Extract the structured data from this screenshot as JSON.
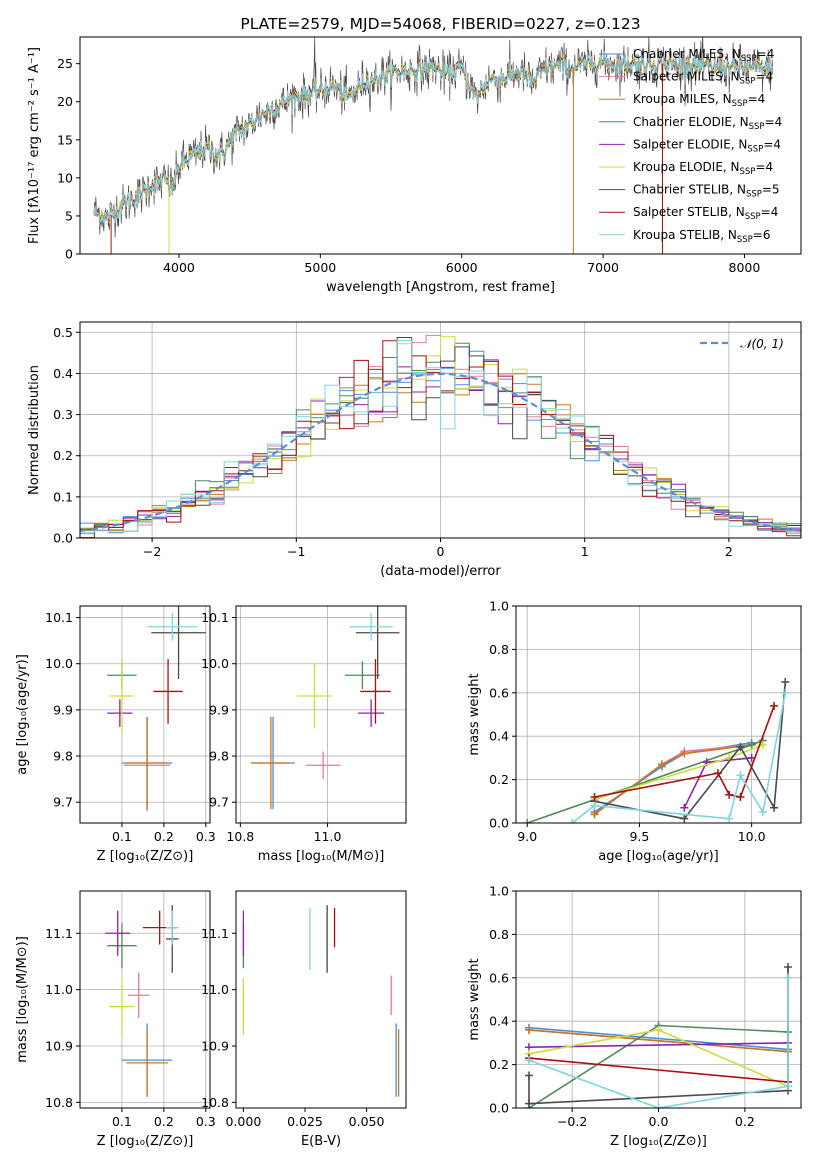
{
  "series_styles": [
    {
      "name": "Chabrier MILES",
      "color": "#4a90d9"
    },
    {
      "name": "Salpeter MILES",
      "color": "#e8799f"
    },
    {
      "name": "Kroupa MILES",
      "color": "#c8781e"
    },
    {
      "name": "Chabrier ELODIE",
      "color": "#4f8a5a"
    },
    {
      "name": "Salpeter ELODIE",
      "color": "#8e24aa"
    },
    {
      "name": "Kroupa ELODIE",
      "color": "#cddc39"
    },
    {
      "name": "Chabrier STELIB",
      "color": "#4a4a4a"
    },
    {
      "name": "Salpeter STELIB",
      "color": "#a81010"
    },
    {
      "name": "Kroupa STELIB",
      "color": "#7fd6dc"
    }
  ],
  "chart_data": [
    {
      "id": "spectrum",
      "type": "line",
      "title": "PLATE=2579, MJD=54068, FIBERID=0227, z=0.123",
      "xlabel": "wavelength [Angstrom, rest frame]",
      "ylabel": "Flux [fλ10⁻¹⁷ erg cm⁻² s⁻¹ A⁻¹]",
      "xlim": [
        3300,
        8400
      ],
      "ylim": [
        0,
        28.5
      ],
      "xticks": [
        "4000",
        "5000",
        "6000",
        "7000",
        "8000"
      ],
      "yticks": [
        "0",
        "5",
        "10",
        "15",
        "20",
        "25"
      ],
      "legend": [
        "Chabrier MILES, N_SSP=4",
        "Salpeter MILES, N_SSP=4",
        "Kroupa MILES, N_SSP=4",
        "Chabrier ELODIE, N_SSP=4",
        "Salpeter ELODIE, N_SSP=4",
        "Kroupa ELODIE, N_SSP=4",
        "Chabrier STELIB, N_SSP=5",
        "Salpeter STELIB, N_SSP=4",
        "Kroupa STELIB, N_SSP=6"
      ],
      "legend_placement": "upper-right",
      "grid": false,
      "continuum": [
        [
          3400,
          5.5
        ],
        [
          3500,
          4.8
        ],
        [
          3600,
          6.5
        ],
        [
          3700,
          7.5
        ],
        [
          3800,
          9
        ],
        [
          3900,
          9.8
        ],
        [
          3950,
          8.5
        ],
        [
          4000,
          11.5
        ],
        [
          4100,
          13
        ],
        [
          4200,
          13.8
        ],
        [
          4300,
          13
        ],
        [
          4400,
          15.8
        ],
        [
          4500,
          17
        ],
        [
          4600,
          18.5
        ],
        [
          4700,
          19.5
        ],
        [
          4800,
          20.5
        ],
        [
          4900,
          21
        ],
        [
          5000,
          21.5
        ],
        [
          5100,
          22
        ],
        [
          5200,
          20.5
        ],
        [
          5300,
          22.5
        ],
        [
          5400,
          23
        ],
        [
          5500,
          23.8
        ],
        [
          5600,
          24
        ],
        [
          5700,
          24.2
        ],
        [
          5800,
          24.5
        ],
        [
          5900,
          23.5
        ],
        [
          6000,
          24.5
        ],
        [
          6100,
          20.5
        ],
        [
          6200,
          23
        ],
        [
          6300,
          23
        ],
        [
          6400,
          24
        ],
        [
          6500,
          22.5
        ],
        [
          6600,
          24.5
        ],
        [
          6700,
          24.8
        ],
        [
          6800,
          24.5
        ],
        [
          6900,
          25
        ],
        [
          7000,
          25.2
        ],
        [
          7100,
          24.8
        ],
        [
          7200,
          25
        ],
        [
          7400,
          25
        ],
        [
          7600,
          24.8
        ],
        [
          7800,
          24.5
        ],
        [
          8000,
          24.5
        ],
        [
          8200,
          24.2
        ]
      ]
    },
    {
      "id": "residuals",
      "type": "step",
      "xlabel": "(data-model)/error",
      "ylabel": "Normed distribution",
      "xlim": [
        -2.5,
        2.5
      ],
      "ylim": [
        0,
        0.525
      ],
      "xticks": [
        "−2",
        "−1",
        "0",
        "1",
        "2"
      ],
      "yticks": [
        "0.0",
        "0.1",
        "0.2",
        "0.3",
        "0.4",
        "0.5"
      ],
      "legend": [
        "𝒩(0, 1)"
      ],
      "legend_placement": "upper-right",
      "grid": true,
      "bin_width": 0.1
    },
    {
      "id": "age-vs-Z",
      "type": "errorbar",
      "xlabel": "Z [log₁₀(Z/Z⊙)]",
      "ylabel": "age  [log₁₀(age/yr)]",
      "xlim": [
        0.0,
        0.31
      ],
      "ylim": [
        9.655,
        10.125
      ],
      "xticks": [
        "0.1",
        "0.2",
        "0.3"
      ],
      "yticks": [
        "9.7",
        "9.8",
        "9.9",
        "10.0",
        "10.1"
      ],
      "grid": true,
      "points": [
        {
          "series": "Chabrier MILES",
          "x": 0.16,
          "y": 9.785,
          "xerr": 0.06,
          "yerr": 0.1
        },
        {
          "series": "Salpeter MILES",
          "x": 0.16,
          "y": 9.78,
          "xerr": 0.055,
          "yerr": 0.1
        },
        {
          "series": "Kroupa MILES",
          "x": 0.16,
          "y": 9.785,
          "xerr": 0.05,
          "yerr": 0.1
        },
        {
          "series": "Chabrier ELODIE",
          "x": 0.1,
          "y": 9.975,
          "xerr": 0.035,
          "yerr": 0.03
        },
        {
          "series": "Salpeter ELODIE",
          "x": 0.095,
          "y": 9.893,
          "xerr": 0.03,
          "yerr": 0.03
        },
        {
          "series": "Kroupa ELODIE",
          "x": 0.1,
          "y": 9.93,
          "xerr": 0.03,
          "yerr": 0.08
        },
        {
          "series": "Chabrier STELIB",
          "x": 0.235,
          "y": 10.067,
          "xerr": 0.065,
          "yerr": 0.1
        },
        {
          "series": "Salpeter STELIB",
          "x": 0.21,
          "y": 9.94,
          "xerr": 0.035,
          "yerr": 0.07
        },
        {
          "series": "Kroupa STELIB",
          "x": 0.22,
          "y": 10.08,
          "xerr": 0.06,
          "yerr": 0.03
        }
      ]
    },
    {
      "id": "age-vs-mass",
      "type": "errorbar",
      "xlabel": "mass [log₁₀(M/M⊙)]",
      "ylabel": "",
      "xlim": [
        10.79,
        11.18
      ],
      "ylim": [
        9.655,
        10.125
      ],
      "xticks": [
        "10.8",
        "11.0"
      ],
      "yticks": [
        "9.7",
        "9.8",
        "9.9",
        "10.0",
        "10.1"
      ],
      "grid": true,
      "points": [
        {
          "series": "Chabrier MILES",
          "x": 10.875,
          "y": 9.785,
          "xerr": 0.05,
          "yerr": 0.1
        },
        {
          "series": "Salpeter MILES",
          "x": 10.99,
          "y": 9.78,
          "xerr": 0.04,
          "yerr": 0.03
        },
        {
          "series": "Kroupa MILES",
          "x": 10.87,
          "y": 9.785,
          "xerr": 0.045,
          "yerr": 0.1
        },
        {
          "series": "Chabrier ELODIE",
          "x": 11.08,
          "y": 9.975,
          "xerr": 0.04,
          "yerr": 0.03
        },
        {
          "series": "Salpeter ELODIE",
          "x": 11.1,
          "y": 9.893,
          "xerr": 0.03,
          "yerr": 0.03
        },
        {
          "series": "Kroupa ELODIE",
          "x": 10.97,
          "y": 9.93,
          "xerr": 0.04,
          "yerr": 0.07
        },
        {
          "series": "Chabrier STELIB",
          "x": 11.115,
          "y": 10.067,
          "xerr": 0.05,
          "yerr": 0.1
        },
        {
          "series": "Salpeter STELIB",
          "x": 11.11,
          "y": 9.94,
          "xerr": 0.035,
          "yerr": 0.07
        },
        {
          "series": "Kroupa STELIB",
          "x": 11.1,
          "y": 10.08,
          "xerr": 0.05,
          "yerr": 0.03
        }
      ]
    },
    {
      "id": "mass-weight-vs-age",
      "type": "line",
      "xlabel": "age  [log₁₀(age/yr)]",
      "ylabel": "mass weight",
      "xlim": [
        8.95,
        10.22
      ],
      "ylim": [
        0,
        1.0
      ],
      "xticks": [
        "9.0",
        "9.5",
        "10.0"
      ],
      "yticks": [
        "0.0",
        "0.2",
        "0.4",
        "0.6",
        "0.8",
        "1.0"
      ],
      "grid": true,
      "series": [
        {
          "name": "Chabrier MILES",
          "x": [
            9.3,
            9.6,
            9.7,
            10.0
          ],
          "y": [
            0.05,
            0.26,
            0.32,
            0.37
          ]
        },
        {
          "name": "Salpeter MILES",
          "x": [
            9.3,
            9.6,
            9.7,
            10.0
          ],
          "y": [
            0.04,
            0.27,
            0.33,
            0.36
          ]
        },
        {
          "name": "Kroupa MILES",
          "x": [
            9.3,
            9.6,
            9.7,
            10.0
          ],
          "y": [
            0.04,
            0.27,
            0.32,
            0.36
          ]
        },
        {
          "name": "Chabrier ELODIE",
          "x": [
            9.0,
            10.0,
            10.05
          ],
          "y": [
            0.0,
            0.36,
            0.38
          ]
        },
        {
          "name": "Salpeter ELODIE",
          "x": [
            9.7,
            9.8,
            10.0
          ],
          "y": [
            0.07,
            0.28,
            0.3
          ]
        },
        {
          "name": "Kroupa ELODIE",
          "x": [
            9.3,
            9.9,
            10.05
          ],
          "y": [
            0.11,
            0.3,
            0.36
          ]
        },
        {
          "name": "Chabrier STELIB",
          "x": [
            9.3,
            9.7,
            9.95,
            10.1,
            10.15
          ],
          "y": [
            0.1,
            0.02,
            0.35,
            0.07,
            0.65
          ]
        },
        {
          "name": "Salpeter STELIB",
          "x": [
            9.3,
            9.85,
            9.9,
            9.95,
            10.1
          ],
          "y": [
            0.12,
            0.23,
            0.13,
            0.12,
            0.54
          ]
        },
        {
          "name": "Kroupa STELIB",
          "x": [
            9.2,
            9.3,
            9.9,
            9.95,
            10.05,
            10.15
          ],
          "y": [
            0.0,
            0.08,
            0.02,
            0.22,
            0.05,
            0.6
          ]
        }
      ]
    },
    {
      "id": "mass-vs-Z",
      "type": "errorbar",
      "xlabel": "Z [log₁₀(Z/Z⊙)]",
      "ylabel": "mass [log₁₀(M/M⊙)]",
      "xlim": [
        0.0,
        0.31
      ],
      "ylim": [
        10.79,
        11.175
      ],
      "xticks": [
        "0.1",
        "0.2",
        "0.3"
      ],
      "yticks": [
        "10.8",
        "10.9",
        "11.0",
        "11.1"
      ],
      "grid": true,
      "points": [
        {
          "series": "Chabrier MILES",
          "x": 0.16,
          "y": 10.875,
          "xerr": 0.06,
          "yerr": 0.065
        },
        {
          "series": "Salpeter MILES",
          "x": 0.14,
          "y": 10.99,
          "xerr": 0.025,
          "yerr": 0.04
        },
        {
          "series": "Kroupa MILES",
          "x": 0.16,
          "y": 10.87,
          "xerr": 0.05,
          "yerr": 0.06
        },
        {
          "series": "Chabrier ELODIE",
          "x": 0.1,
          "y": 11.078,
          "xerr": 0.035,
          "yerr": 0.04
        },
        {
          "series": "Salpeter ELODIE",
          "x": 0.09,
          "y": 11.1,
          "xerr": 0.03,
          "yerr": 0.04
        },
        {
          "series": "Kroupa ELODIE",
          "x": 0.1,
          "y": 10.97,
          "xerr": 0.03,
          "yerr": 0.05
        },
        {
          "series": "Chabrier STELIB",
          "x": 0.22,
          "y": 11.09,
          "xerr": 0.015,
          "yerr": 0.06
        },
        {
          "series": "Salpeter STELIB",
          "x": 0.19,
          "y": 11.11,
          "xerr": 0.04,
          "yerr": 0.03
        },
        {
          "series": "Kroupa STELIB",
          "x": 0.22,
          "y": 11.11,
          "xerr": 0.015,
          "yerr": 0.03
        }
      ]
    },
    {
      "id": "mass-vs-ebv",
      "type": "errorbar",
      "xlabel": "E(B-V)",
      "ylabel": "",
      "xlim": [
        -0.003,
        0.066
      ],
      "ylim": [
        10.79,
        11.175
      ],
      "xticks": [
        "0.000",
        "0.025",
        "0.050"
      ],
      "yticks": [
        "10.8",
        "10.9",
        "11.0",
        "11.1"
      ],
      "grid": false,
      "points": [
        {
          "series": "Chabrier MILES",
          "x": 0.062,
          "y": 10.875,
          "xerr": 0,
          "yerr": 0.065
        },
        {
          "series": "Salpeter MILES",
          "x": 0.06,
          "y": 10.99,
          "xerr": 0,
          "yerr": 0.035
        },
        {
          "series": "Kroupa MILES",
          "x": 0.063,
          "y": 10.87,
          "xerr": 0,
          "yerr": 0.06
        },
        {
          "series": "Chabrier ELODIE",
          "x": 0.0,
          "y": 11.078,
          "xerr": 0,
          "yerr": 0.04
        },
        {
          "series": "Salpeter ELODIE",
          "x": 0.0,
          "y": 11.1,
          "xerr": 0,
          "yerr": 0.04
        },
        {
          "series": "Kroupa ELODIE",
          "x": 0.0,
          "y": 10.97,
          "xerr": 0,
          "yerr": 0.05
        },
        {
          "series": "Chabrier STELIB",
          "x": 0.034,
          "y": 11.09,
          "xerr": 0,
          "yerr": 0.06
        },
        {
          "series": "Salpeter STELIB",
          "x": 0.037,
          "y": 11.11,
          "xerr": 0,
          "yerr": 0.035
        },
        {
          "series": "Kroupa STELIB",
          "x": 0.027,
          "y": 11.09,
          "xerr": 0,
          "yerr": 0.055
        }
      ]
    },
    {
      "id": "mass-weight-vs-Z",
      "type": "line",
      "xlabel": "Z [log₁₀(Z/Z⊙)]",
      "ylabel": "mass weight",
      "xlim": [
        -0.33,
        0.33
      ],
      "ylim": [
        0,
        1.0
      ],
      "xticks": [
        "−0.2",
        "0.0",
        "0.2"
      ],
      "yticks": [
        "0.0",
        "0.2",
        "0.4",
        "0.6",
        "0.8",
        "1.0"
      ],
      "grid": true,
      "series": [
        {
          "name": "Chabrier MILES",
          "x": [
            -0.3,
            0.3
          ],
          "y": [
            0.37,
            0.27
          ]
        },
        {
          "name": "Salpeter MILES",
          "x": [
            -0.3,
            0.3
          ],
          "y": [
            0.36,
            0.26
          ]
        },
        {
          "name": "Kroupa MILES",
          "x": [
            -0.3,
            0.3
          ],
          "y": [
            0.36,
            0.26
          ]
        },
        {
          "name": "Chabrier ELODIE",
          "x": [
            -0.3,
            0.0,
            0.3
          ],
          "y": [
            0.0,
            0.38,
            0.35
          ]
        },
        {
          "name": "Salpeter ELODIE",
          "x": [
            -0.3,
            0.3
          ],
          "y": [
            0.28,
            0.3
          ]
        },
        {
          "name": "Kroupa ELODIE",
          "x": [
            -0.3,
            0.0,
            0.3
          ],
          "y": [
            0.25,
            0.36,
            0.1
          ]
        },
        {
          "name": "Chabrier STELIB",
          "x": [
            -0.3,
            -0.3,
            0.3,
            0.3
          ],
          "y": [
            0.15,
            0.02,
            0.08,
            0.65
          ]
        },
        {
          "name": "Salpeter STELIB",
          "x": [
            -0.3,
            0.3
          ],
          "y": [
            0.23,
            0.12
          ]
        },
        {
          "name": "Kroupa STELIB",
          "x": [
            -0.3,
            0.0,
            0.3,
            0.3
          ],
          "y": [
            0.22,
            0.0,
            0.1,
            0.6
          ]
        }
      ]
    }
  ]
}
